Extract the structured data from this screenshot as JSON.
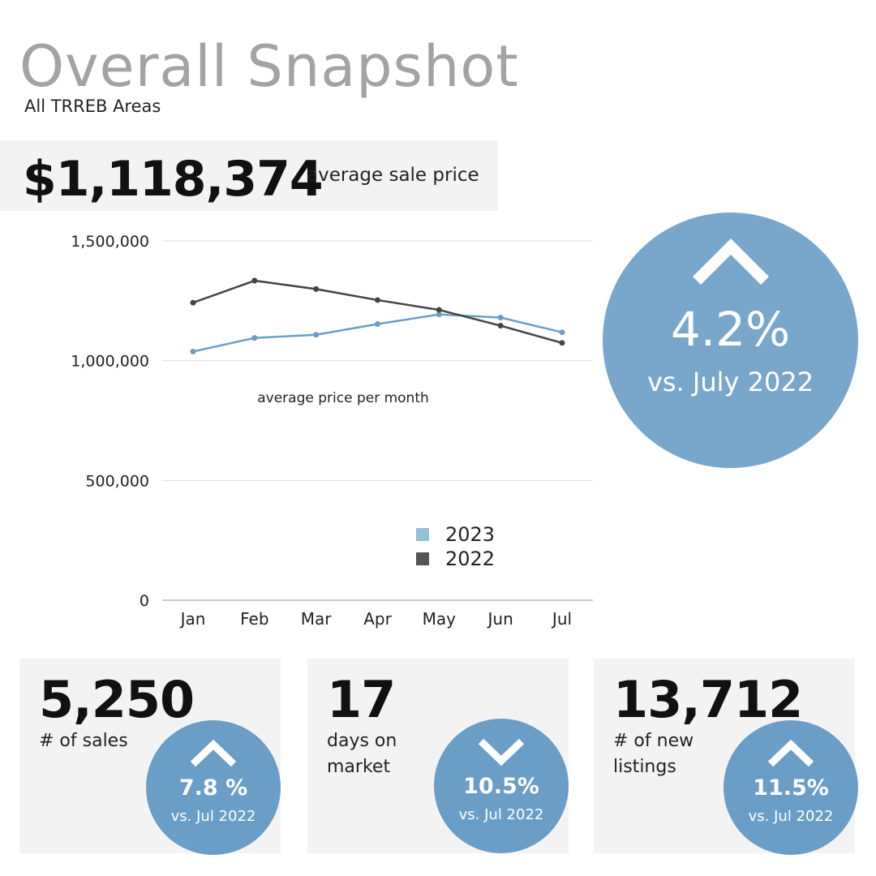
{
  "header": {
    "title": "Overall Snapshot",
    "subtitle": "All TRREB Areas"
  },
  "headline": {
    "value": "$1,118,374",
    "label": "average sale price"
  },
  "big_stat": {
    "direction": "up",
    "icon": "chevron-up-icon",
    "percent": "4.2%",
    "comparison": "vs. July 2022"
  },
  "cards": [
    {
      "value": "5,250",
      "label": "# of sales",
      "direction": "up",
      "icon": "chevron-up-icon",
      "percent": "7.8 %",
      "comparison": "vs. Jul 2022"
    },
    {
      "value": "17",
      "label": "days on market",
      "direction": "down",
      "icon": "chevron-down-icon",
      "percent": "10.5%",
      "comparison": "vs. Jul 2022"
    },
    {
      "value": "13,712",
      "label": "# of new listings",
      "direction": "up",
      "icon": "chevron-up-icon",
      "percent": "11.5%",
      "comparison": "vs. Jul 2022"
    }
  ],
  "colors": {
    "circle_accent": "#79a7cb",
    "mini_circle_accent": "#6a9ec6",
    "series_2023": "#6a9ec6",
    "series_2022": "#444444",
    "legend_2023": "#92c2d6",
    "legend_2022": "#555555",
    "panel_background": "#f3f3f3",
    "title_gray": "#a3a3a3"
  },
  "chart_data": {
    "type": "line",
    "annotation": "average price per month",
    "categories": [
      "Jan",
      "Feb",
      "Mar",
      "Apr",
      "May",
      "Jun",
      "Jul"
    ],
    "y_ticks": [
      0,
      500000,
      1000000,
      1500000
    ],
    "y_tick_labels": [
      "0",
      "500,000",
      "1,000,000",
      "1,500,000"
    ],
    "ylim": [
      0,
      1500000
    ],
    "grid": true,
    "legend_position": "center",
    "series": [
      {
        "name": "2023",
        "values": [
          1038000,
          1095000,
          1108000,
          1153000,
          1193000,
          1180000,
          1118374
        ]
      },
      {
        "name": "2022",
        "values": [
          1242000,
          1334000,
          1299000,
          1253000,
          1212000,
          1146000,
          1074000
        ]
      }
    ]
  }
}
